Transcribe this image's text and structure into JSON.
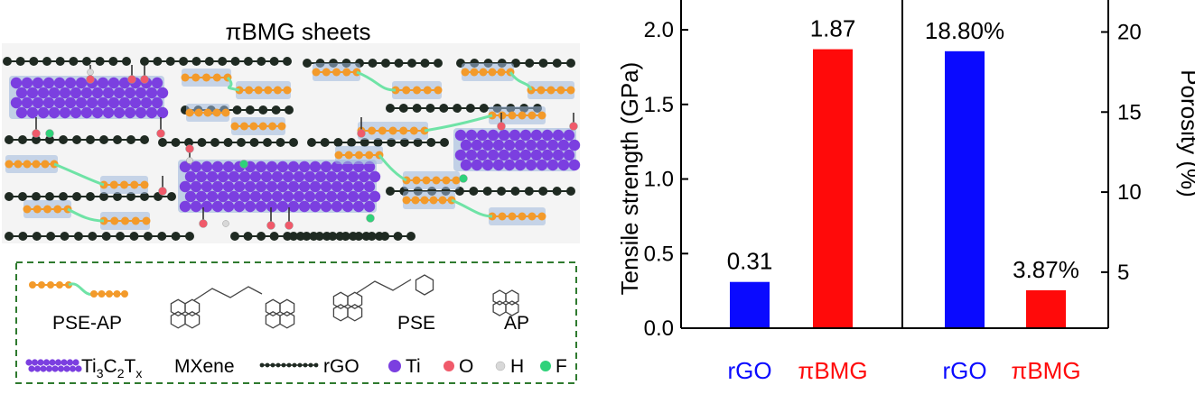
{
  "figure_left": {
    "title": "πBMG sheets",
    "legend": {
      "pse_ap_label": "PSE-AP",
      "pse_label": "PSE",
      "ap_label": "AP",
      "mxene_formula": {
        "ti": "Ti",
        "sub3": "3",
        "c": "C",
        "sub2": "2",
        "t": "T",
        "subx": "x"
      },
      "mxene_label": "MXene",
      "rgo_label": "rGO",
      "ti_label": "Ti",
      "o_label": "O",
      "h_label": "H",
      "f_label": "F"
    },
    "colors": {
      "rgo_bead": "#1f2a22",
      "ti_atom": "#7b3fe0",
      "o_atom": "#f05a6a",
      "h_atom": "#d8d8d8",
      "f_atom": "#30d27a",
      "pse": "#f39a2a",
      "linker": "#6fe3a6",
      "mxene_shadow": "#9fb8dc",
      "legend_border": "#2f7a2f"
    }
  },
  "chart_data": {
    "type": "bar",
    "panels": [
      {
        "categories": [
          "rGO",
          "πBMG"
        ],
        "values": [
          0.31,
          1.87
        ],
        "data_labels": [
          "0.31",
          "1.87"
        ],
        "ylabel": "Tensile strength (GPa)",
        "ylim": [
          0,
          2.2
        ],
        "yticks": [
          "0.0",
          "0.5",
          "1.0",
          "1.5",
          "2.0"
        ],
        "axis_side": "left"
      },
      {
        "categories": [
          "rGO",
          "πBMG"
        ],
        "values": [
          18.8,
          3.87
        ],
        "data_labels": [
          "18.80%",
          "3.87%"
        ],
        "ylabel": "Porosity (%)",
        "ylim": [
          1.5,
          22
        ],
        "yticks": [
          "5",
          "10",
          "15",
          "20"
        ],
        "axis_side": "right"
      }
    ],
    "bar_colors": [
      "#0a0aff",
      "#ff0a0a"
    ],
    "category_colors": [
      "#0a0aff",
      "#ff0a0a"
    ],
    "grid": false
  }
}
